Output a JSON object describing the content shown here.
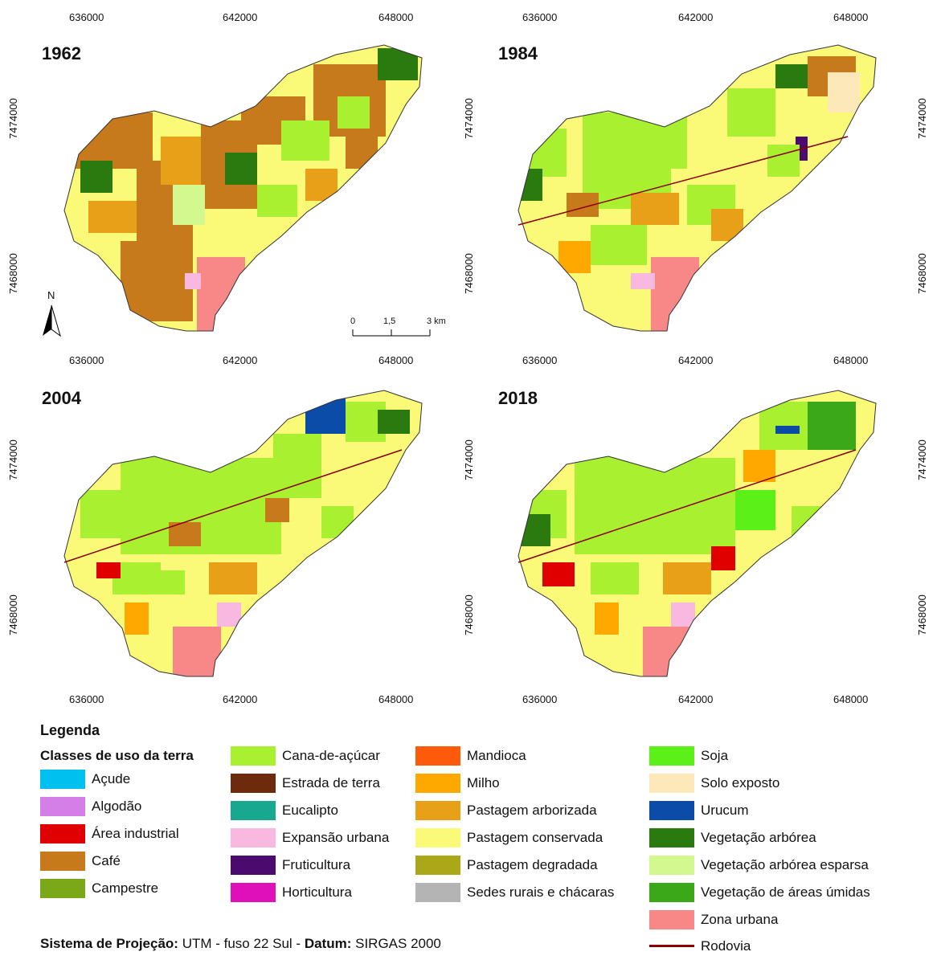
{
  "panels": [
    {
      "year": "1962"
    },
    {
      "year": "1984"
    },
    {
      "year": "2004"
    },
    {
      "year": "2018"
    }
  ],
  "easting_ticks": [
    "636000",
    "642000",
    "648000"
  ],
  "northing_ticks": [
    "7474000",
    "7468000"
  ],
  "north_arrow": {
    "label": "N",
    "icon": "north-arrow-icon"
  },
  "scale_bar": {
    "labels": [
      "0",
      "1,5",
      "3 km"
    ]
  },
  "legend": {
    "title": "Legenda",
    "subtitle": "Classes de uso da terra",
    "classes": [
      {
        "label": "Açude",
        "color": "#00c0f0"
      },
      {
        "label": "Algodão",
        "color": "#d47fe8"
      },
      {
        "label": "Área industrial",
        "color": "#e00000"
      },
      {
        "label": "Café",
        "color": "#c77a1c"
      },
      {
        "label": "Campestre",
        "color": "#7aa818"
      },
      {
        "label": "Cana-de-açúcar",
        "color": "#a8f030"
      },
      {
        "label": "Estrada de terra",
        "color": "#6e2a0c"
      },
      {
        "label": "Eucalipto",
        "color": "#18a890"
      },
      {
        "label": "Expansão urbana",
        "color": "#f8b8e0"
      },
      {
        "label": "Fruticultura",
        "color": "#4a0a6e"
      },
      {
        "label": "Horticultura",
        "color": "#e010b8"
      },
      {
        "label": "Mandioca",
        "color": "#ff5a0a"
      },
      {
        "label": "Milho",
        "color": "#ffa800"
      },
      {
        "label": "Pastagem arborizada",
        "color": "#e8a018"
      },
      {
        "label": "Pastagem conservada",
        "color": "#fafa78"
      },
      {
        "label": "Pastagem degradada",
        "color": "#aaa818"
      },
      {
        "label": "Sedes rurais e chácaras",
        "color": "#b4b4b4"
      },
      {
        "label": "Soja",
        "color": "#5af018"
      },
      {
        "label": "Solo exposto",
        "color": "#fce8b8"
      },
      {
        "label": "Urucum",
        "color": "#0a4ca8"
      },
      {
        "label": "Vegetação arbórea",
        "color": "#2a7a10"
      },
      {
        "label": "Vegetação arbórea esparsa",
        "color": "#d4f890"
      },
      {
        "label": "Vegetação de áreas úmidas",
        "color": "#3aa818"
      },
      {
        "label": "Zona urbana",
        "color": "#f88888"
      }
    ],
    "road": {
      "label": "Rodovia",
      "color": "#8b0000"
    }
  },
  "projection": {
    "label1": "Sistema de Projeção:",
    "value1": "UTM - fuso 22 Sul -",
    "label2": "Datum:",
    "value2": "SIRGAS 2000"
  }
}
